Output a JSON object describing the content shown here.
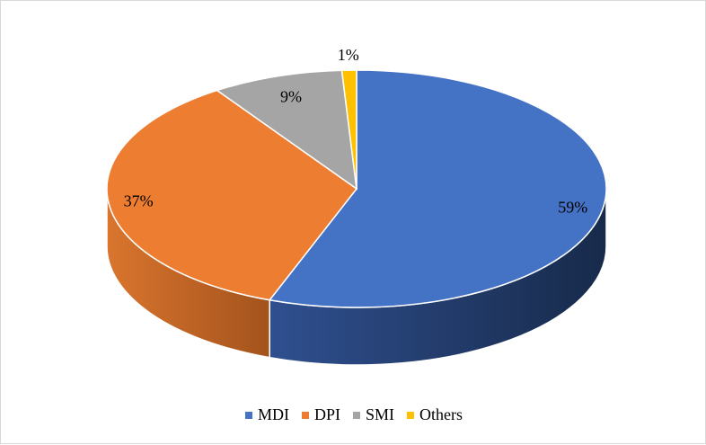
{
  "chart_data": {
    "type": "pie",
    "style": "3d",
    "categories": [
      "MDI",
      "DPI",
      "SMI",
      "Others"
    ],
    "values": [
      59,
      37,
      9,
      1
    ],
    "labels": [
      "59%",
      "37%",
      "9%",
      "1%"
    ],
    "colors": [
      "#4472c4",
      "#ed7d31",
      "#a5a5a5",
      "#ffc000"
    ],
    "legend_position": "bottom",
    "title": ""
  }
}
